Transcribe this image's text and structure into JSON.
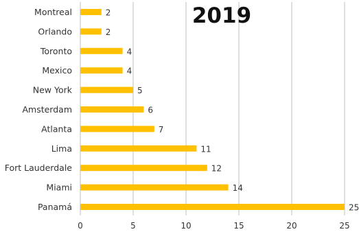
{
  "chart_data": {
    "type": "bar",
    "orientation": "horizontal",
    "title": "2019",
    "categories": [
      "Montreal",
      "Orlando",
      "Toronto",
      "Mexico",
      "New York",
      "Amsterdam",
      "Atlanta",
      "Lima",
      "Fort Lauderdale",
      "Miami",
      "Panamá"
    ],
    "values": [
      2,
      2,
      4,
      4,
      5,
      6,
      7,
      11,
      12,
      14,
      25
    ],
    "xlim": [
      0,
      25
    ],
    "xticks": [
      0,
      5,
      10,
      15,
      20,
      25
    ],
    "xlabel": "",
    "ylabel": "",
    "grid": "vertical",
    "bar_color": "#FFC000",
    "grid_color": "#bfbfbf",
    "data_labels": true
  }
}
